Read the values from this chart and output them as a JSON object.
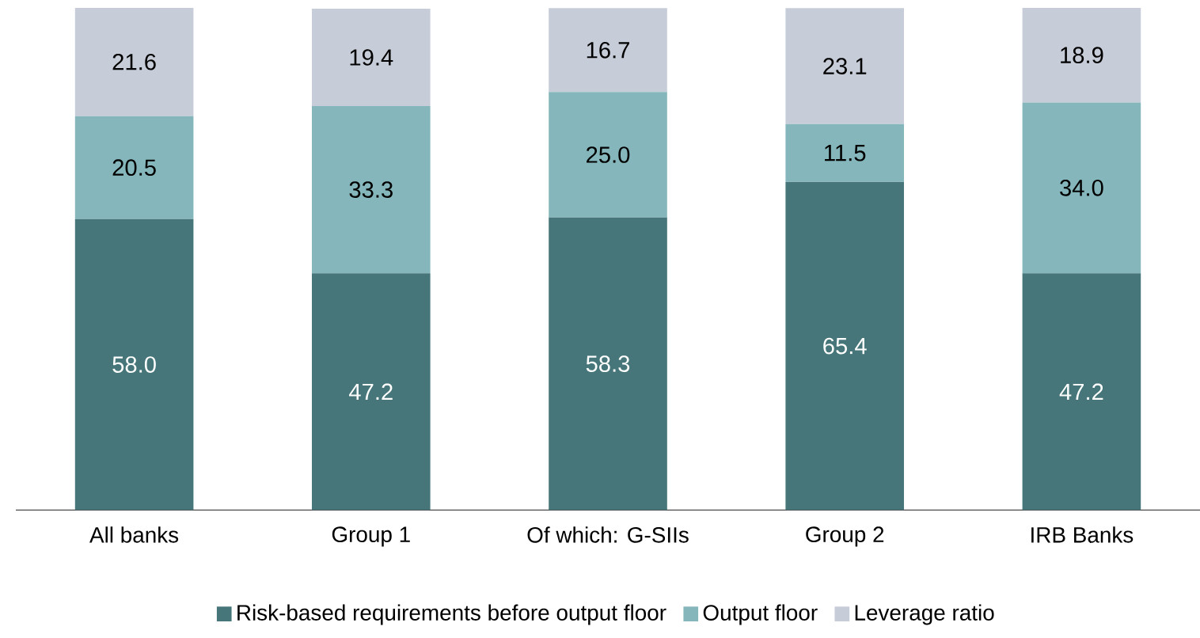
{
  "chart_data": {
    "type": "bar",
    "stacked": true,
    "data_labels": true,
    "legend": "bottom",
    "categories": [
      "All banks",
      "Group 1",
      "Of which: G-SIIs",
      "Group 2",
      "IRB Banks"
    ],
    "series": [
      {
        "name": "Risk-based requirements before output floor",
        "color": "#467679",
        "values": [
          58.0,
          47.2,
          58.3,
          65.4,
          47.2
        ],
        "value_labels": [
          "58.0",
          "47.2",
          "58.3",
          "65.4",
          "47.2"
        ]
      },
      {
        "name": "Output floor",
        "color": "#85b6bb",
        "values": [
          20.5,
          33.3,
          25.0,
          11.5,
          34.0
        ],
        "value_labels": [
          "20.5",
          "33.3",
          "25.0",
          "11.5",
          "34.0"
        ]
      },
      {
        "name": "Leverage ratio",
        "color": "#c6ccd8",
        "values": [
          21.6,
          19.4,
          16.7,
          23.1,
          18.9
        ],
        "value_labels": [
          "21.6",
          "19.4",
          "16.7",
          "23.1",
          "18.9"
        ]
      }
    ]
  }
}
